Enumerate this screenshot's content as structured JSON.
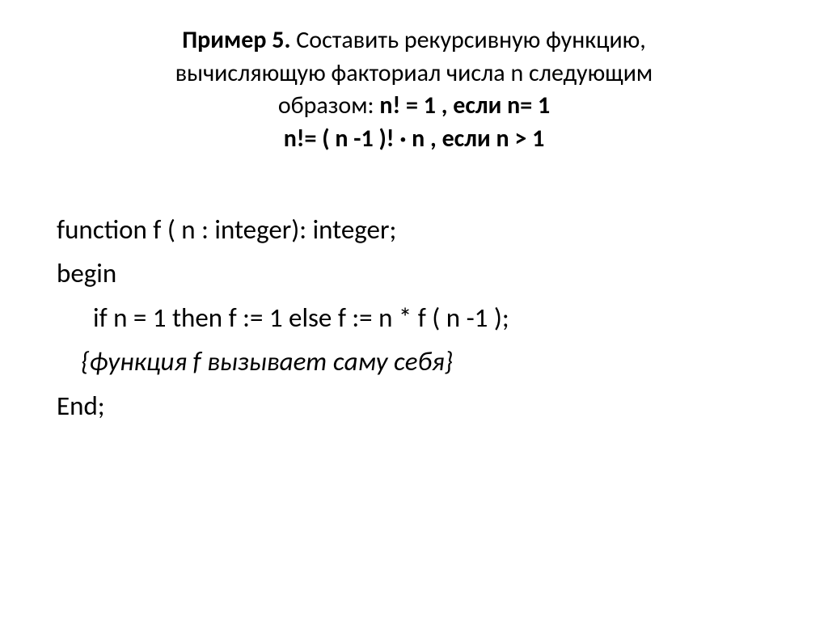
{
  "title": {
    "line1_bold": "Пример 5.",
    "line1_rest": " Составить рекурсивную функцию,",
    "line2": "вычисляющую факториал числа n следующим",
    "line3_a": "образом:    ",
    "line3_b": "n! = 1   , если   n= 1",
    "line4": "n!= ( n -1 )! · n ,  если  n > 1"
  },
  "code": {
    "l1": "function   f ( n : integer): integer;",
    "l2": "begin",
    "l3": "if  n = 1 then  f := 1  else f := n * f ( n -1 );",
    "l4": "{функция f вызывает саму себя}",
    "l5": "End;"
  },
  "colors": {
    "background": "#ffffff",
    "text": "#000000"
  },
  "fonts": {
    "title_size": 30,
    "body_size": 33
  }
}
